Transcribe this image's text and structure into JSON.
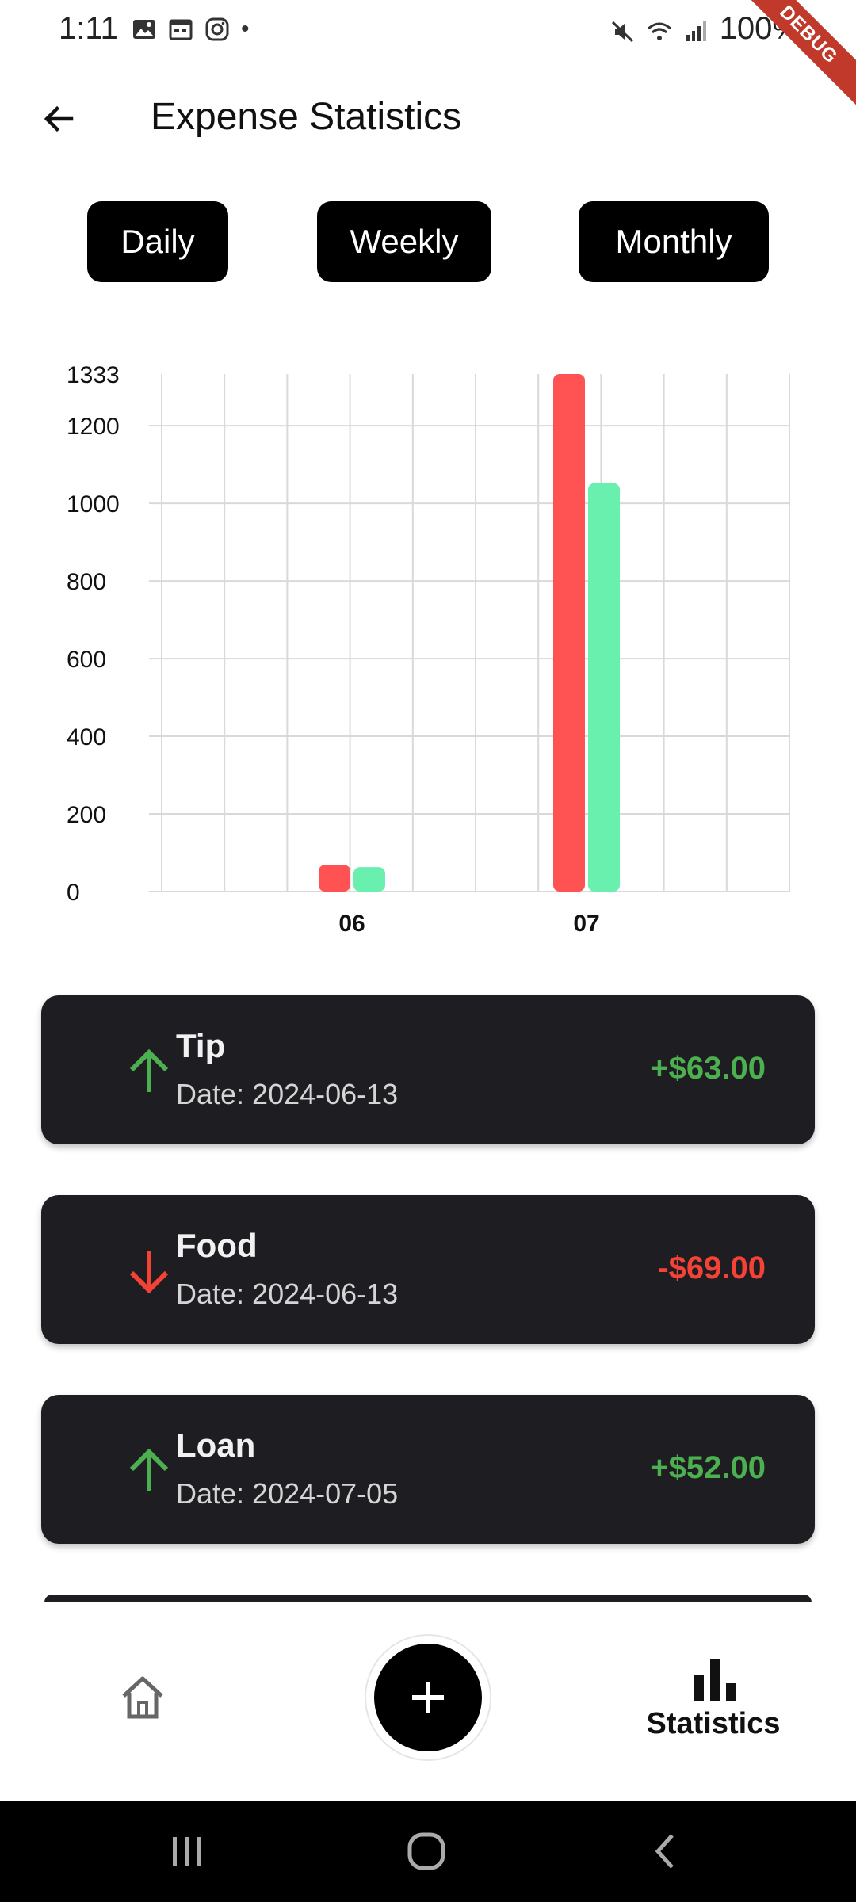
{
  "status_bar": {
    "time": "1:11",
    "battery": "100%",
    "dot": "•",
    "debug_banner": "DEBUG",
    "icons_left": [
      "gallery-icon",
      "calendar-icon",
      "instagram-icon"
    ],
    "icons_right": [
      "mute-icon",
      "wifi-icon",
      "signal-icon",
      "battery-icon"
    ]
  },
  "app_bar": {
    "title": "Expense Statistics",
    "back_icon": "arrow-left-icon"
  },
  "period_tabs": [
    {
      "label": "Daily"
    },
    {
      "label": "Weekly"
    },
    {
      "label": "Monthly"
    }
  ],
  "colors": {
    "expense_bar": "#ff5252",
    "income_bar": "#69f0ae",
    "positive": "#4caf50",
    "negative": "#f44336",
    "card_bg": "#1e1d22"
  },
  "chart_data": {
    "type": "bar",
    "categories": [
      "06",
      "07"
    ],
    "series": [
      {
        "color": "#ff5252",
        "values": [
          69,
          1333
        ]
      },
      {
        "color": "#69f0ae",
        "values": [
          63,
          1052
        ]
      }
    ],
    "title": "",
    "xlabel": "",
    "ylabel": "",
    "ylim": [
      0,
      1333
    ],
    "yticks": [
      0,
      200,
      400,
      600,
      800,
      1000,
      1200,
      1333
    ],
    "grid": true,
    "legend": "none"
  },
  "transactions": [
    {
      "title": "Tip",
      "date": "Date: 2024-06-13",
      "amount": "+$63.00",
      "direction": "up",
      "icon": "arrow-up-icon"
    },
    {
      "title": "Food",
      "date": "Date: 2024-06-13",
      "amount": "-$69.00",
      "direction": "down",
      "icon": "arrow-down-icon"
    },
    {
      "title": "Loan",
      "date": "Date: 2024-07-05",
      "amount": "+$52.00",
      "direction": "up",
      "icon": "arrow-up-icon"
    }
  ],
  "bottom_nav": {
    "home_icon": "home-icon",
    "add_icon": "plus-icon",
    "stats_icon": "bar-chart-icon",
    "stats_label": "Statistics"
  },
  "system_nav": [
    "recents-icon",
    "home-circle-icon",
    "back-chevron-icon"
  ]
}
